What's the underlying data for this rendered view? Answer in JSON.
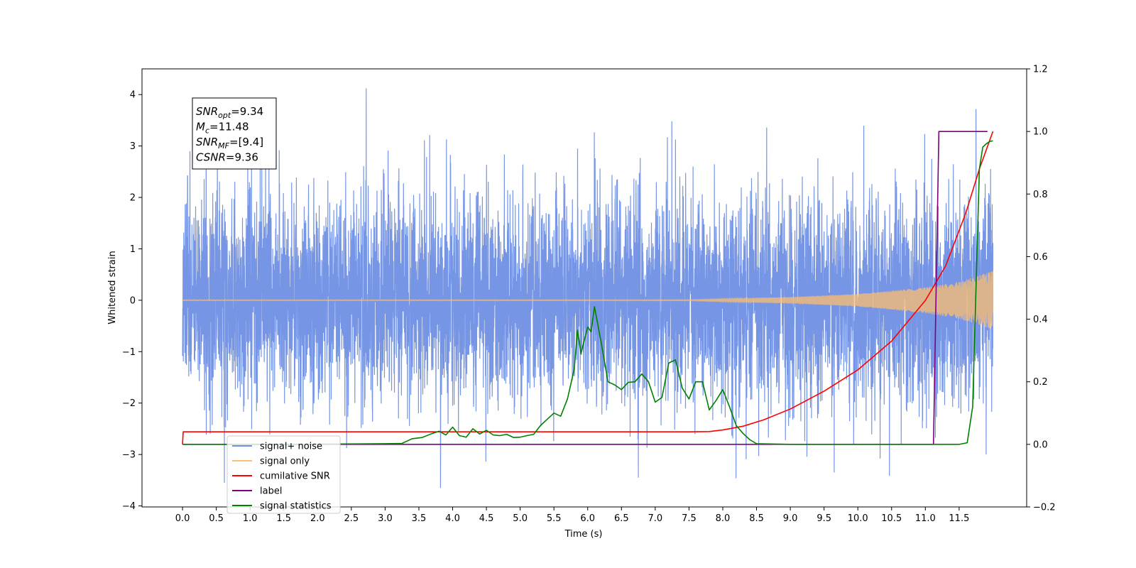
{
  "chart_data": {
    "type": "line",
    "title": "",
    "xlabel": "Time (s)",
    "ylabel": "Whitened strain",
    "ylabel_right": "",
    "xlim": [
      -0.6,
      12.5
    ],
    "ylim": [
      -4.02,
      4.5
    ],
    "ylim_right": [
      -0.2,
      1.2
    ],
    "x_ticks": [
      0.0,
      0.5,
      1.0,
      1.5,
      2.0,
      2.5,
      3.0,
      3.5,
      4.0,
      4.5,
      5.0,
      5.5,
      6.0,
      6.5,
      7.0,
      7.5,
      8.0,
      8.5,
      9.0,
      9.5,
      10.0,
      10.5,
      11.0,
      11.5
    ],
    "x_tick_labels": [
      "0.0",
      "0.5",
      "1.0",
      "1.5",
      "2.0",
      "2.5",
      "3.0",
      "3.5",
      "4.0",
      "4.5",
      "5.0",
      "5.5",
      "6.0",
      "6.5",
      "7.0",
      "7.5",
      "8.0",
      "8.5",
      "9.0",
      "9.5",
      "10.0",
      "10.5",
      "11.0",
      "11.5"
    ],
    "y_ticks": [
      -4,
      -3,
      -2,
      -1,
      0,
      1,
      2,
      3,
      4
    ],
    "y_tick_labels": [
      "−4",
      "−3",
      "−2",
      "−1",
      "0",
      "1",
      "2",
      "3",
      "4"
    ],
    "y_ticks_right": [
      -0.2,
      0.0,
      0.2,
      0.4,
      0.6,
      0.8,
      1.0,
      1.2
    ],
    "y_tick_labels_right": [
      "−0.2",
      "0.0",
      "0.2",
      "0.4",
      "0.6",
      "0.8",
      "1.0",
      "1.2"
    ],
    "grid": false,
    "legend_position": "lower-left",
    "annotation": {
      "lines": [
        {
          "base": "SNR",
          "sub": "opt",
          "rest": "=9.34"
        },
        {
          "base": "M",
          "sub": "c",
          "rest": "=11.48"
        },
        {
          "base": "SNR",
          "sub": "MF",
          "rest": "=[9.4]"
        },
        {
          "base": "CSNR",
          "sub": "",
          "rest": "=9.36"
        }
      ]
    },
    "series": [
      {
        "name": "signal+ noise",
        "axis": "left",
        "color": "#6f8fe4",
        "kind": "noise",
        "x_range": [
          0.0,
          12.0
        ],
        "sigma": 1.0,
        "clip": [
          -3.65,
          4.12
        ],
        "peaks": [
          [
            0.11,
            2.9
          ],
          [
            0.35,
            3.0
          ],
          [
            0.62,
            -3.55
          ],
          [
            1.15,
            2.85
          ],
          [
            2.72,
            4.12
          ],
          [
            3.82,
            -3.65
          ],
          [
            5.85,
            2.95
          ],
          [
            6.75,
            -3.45
          ],
          [
            7.18,
            3.17
          ],
          [
            9.65,
            -3.35
          ],
          [
            11.75,
            3.72
          ],
          [
            11.9,
            -3.0
          ]
        ]
      },
      {
        "name": "signal only",
        "axis": "left",
        "color": "#fdbf6f",
        "kind": "chirp",
        "x_range": [
          0.0,
          12.0
        ],
        "envelope": [
          [
            0.0,
            0.01
          ],
          [
            7.5,
            0.01
          ],
          [
            8.0,
            0.03
          ],
          [
            9.0,
            0.06
          ],
          [
            10.0,
            0.12
          ],
          [
            11.0,
            0.25
          ],
          [
            11.5,
            0.36
          ],
          [
            12.0,
            0.57
          ]
        ]
      },
      {
        "name": "cumilative SNR",
        "axis": "right",
        "color": "#ff0000",
        "points": [
          [
            0.0,
            0.0
          ],
          [
            0.01,
            0.04
          ],
          [
            7.5,
            0.04
          ],
          [
            7.8,
            0.041
          ],
          [
            8.0,
            0.046
          ],
          [
            8.3,
            0.058
          ],
          [
            8.6,
            0.078
          ],
          [
            9.0,
            0.113
          ],
          [
            9.5,
            0.17
          ],
          [
            10.0,
            0.238
          ],
          [
            10.5,
            0.33
          ],
          [
            11.0,
            0.46
          ],
          [
            11.3,
            0.57
          ],
          [
            11.6,
            0.74
          ],
          [
            11.8,
            0.88
          ],
          [
            12.0,
            1.0
          ]
        ]
      },
      {
        "name": "label",
        "axis": "right",
        "color": "#800080",
        "points": [
          [
            0.0,
            0.0
          ],
          [
            11.12,
            0.0
          ],
          [
            11.2,
            1.0
          ],
          [
            11.92,
            1.0
          ]
        ]
      },
      {
        "name": "signal statistics",
        "axis": "right",
        "color": "#008000",
        "points": [
          [
            0.0,
            0.0
          ],
          [
            1.5,
            0.0
          ],
          [
            3.0,
            0.002
          ],
          [
            3.25,
            0.003
          ],
          [
            3.4,
            0.018
          ],
          [
            3.55,
            0.022
          ],
          [
            3.7,
            0.035
          ],
          [
            3.8,
            0.042
          ],
          [
            3.9,
            0.03
          ],
          [
            4.0,
            0.055
          ],
          [
            4.1,
            0.028
          ],
          [
            4.2,
            0.023
          ],
          [
            4.3,
            0.05
          ],
          [
            4.4,
            0.033
          ],
          [
            4.5,
            0.045
          ],
          [
            4.6,
            0.03
          ],
          [
            4.7,
            0.028
          ],
          [
            4.8,
            0.032
          ],
          [
            4.9,
            0.022
          ],
          [
            5.0,
            0.023
          ],
          [
            5.1,
            0.028
          ],
          [
            5.2,
            0.032
          ],
          [
            5.3,
            0.06
          ],
          [
            5.4,
            0.08
          ],
          [
            5.5,
            0.1
          ],
          [
            5.6,
            0.09
          ],
          [
            5.7,
            0.145
          ],
          [
            5.8,
            0.24
          ],
          [
            5.85,
            0.365
          ],
          [
            5.9,
            0.29
          ],
          [
            6.0,
            0.375
          ],
          [
            6.05,
            0.36
          ],
          [
            6.1,
            0.44
          ],
          [
            6.2,
            0.325
          ],
          [
            6.3,
            0.2
          ],
          [
            6.4,
            0.19
          ],
          [
            6.5,
            0.175
          ],
          [
            6.6,
            0.198
          ],
          [
            6.7,
            0.2
          ],
          [
            6.8,
            0.225
          ],
          [
            6.9,
            0.2
          ],
          [
            7.0,
            0.135
          ],
          [
            7.1,
            0.15
          ],
          [
            7.2,
            0.26
          ],
          [
            7.3,
            0.27
          ],
          [
            7.4,
            0.18
          ],
          [
            7.5,
            0.145
          ],
          [
            7.6,
            0.2
          ],
          [
            7.7,
            0.2
          ],
          [
            7.8,
            0.11
          ],
          [
            7.9,
            0.14
          ],
          [
            8.0,
            0.175
          ],
          [
            8.1,
            0.12
          ],
          [
            8.2,
            0.06
          ],
          [
            8.3,
            0.035
          ],
          [
            8.4,
            0.015
          ],
          [
            8.5,
            0.002
          ],
          [
            9.0,
            0.0
          ],
          [
            11.5,
            0.0
          ],
          [
            11.62,
            0.005
          ],
          [
            11.7,
            0.12
          ],
          [
            11.8,
            0.88
          ],
          [
            11.85,
            0.95
          ],
          [
            11.9,
            0.96
          ],
          [
            11.95,
            0.968
          ],
          [
            12.0,
            0.97
          ]
        ]
      }
    ]
  },
  "legend": {
    "items": [
      {
        "label": "signal+ noise",
        "color": "#6f8fe4"
      },
      {
        "label": "signal only",
        "color": "#fdbf6f"
      },
      {
        "label": "cumilative SNR",
        "color": "#ff0000"
      },
      {
        "label": "label",
        "color": "#800080"
      },
      {
        "label": "signal statistics",
        "color": "#008000"
      }
    ]
  }
}
